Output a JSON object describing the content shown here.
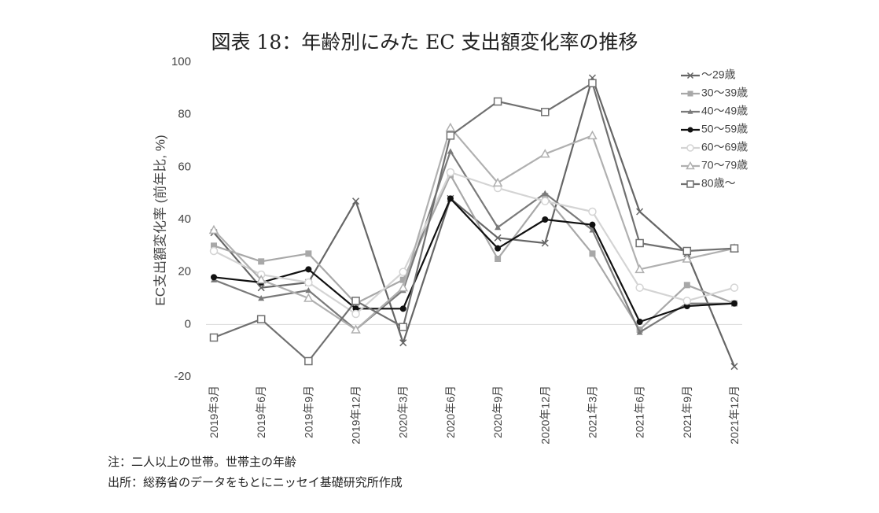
{
  "title": "図表 18：年齢別にみた EC 支出額変化率の推移",
  "notes": {
    "note": "注：二人以上の世帯。世帯主の年齢",
    "source": "出所：総務省のデータをもとにニッセイ基礎研究所作成"
  },
  "chart_data": {
    "type": "line",
    "title": "図表 18：年齢別にみた EC 支出額変化率の推移",
    "xlabel": "",
    "ylabel": "EC支出額変化率 (前年比, %)",
    "ylim": [
      -20,
      100
    ],
    "yticks": [
      -20,
      0,
      20,
      40,
      60,
      80,
      100
    ],
    "grid": false,
    "zero_line": true,
    "legend_position": "top-right",
    "categories": [
      "2019年3月",
      "2019年6月",
      "2019年9月",
      "2019年12月",
      "2020年3月",
      "2020年6月",
      "2020年9月",
      "2020年12月",
      "2021年3月",
      "2021年6月",
      "2021年9月",
      "2021年12月"
    ],
    "series": [
      {
        "name": "～29歳",
        "color": "#666666",
        "marker": "x",
        "values": [
          35,
          14,
          16,
          47,
          -7,
          48,
          33,
          31,
          94,
          43,
          27,
          -16
        ]
      },
      {
        "name": "30～39歳",
        "color": "#a8a8a8",
        "marker": "square-filled",
        "values": [
          30,
          24,
          27,
          8,
          17,
          57,
          25,
          49,
          27,
          -2,
          15,
          8
        ]
      },
      {
        "name": "40～49歳",
        "color": "#7a7a7a",
        "marker": "triangle-filled",
        "values": [
          17,
          10,
          13,
          -2,
          13,
          66,
          37,
          50,
          36,
          -3,
          8,
          8
        ]
      },
      {
        "name": "50～59歳",
        "color": "#111111",
        "marker": "circle-filled",
        "values": [
          18,
          16,
          21,
          6,
          6,
          48,
          29,
          40,
          38,
          1,
          7,
          8
        ]
      },
      {
        "name": "60～69歳",
        "color": "#d4d4d4",
        "marker": "circle-open",
        "values": [
          28,
          19,
          16,
          4,
          20,
          58,
          52,
          47,
          43,
          14,
          9,
          14
        ]
      },
      {
        "name": "70～79歳",
        "color": "#b0b0b0",
        "marker": "triangle-open",
        "values": [
          36,
          17,
          10,
          -2,
          14,
          75,
          54,
          65,
          72,
          21,
          25,
          29
        ]
      },
      {
        "name": "80歳～",
        "color": "#707070",
        "marker": "square-open",
        "values": [
          -5,
          2,
          -14,
          9,
          -1,
          72,
          85,
          81,
          92,
          31,
          28,
          29
        ]
      }
    ]
  }
}
